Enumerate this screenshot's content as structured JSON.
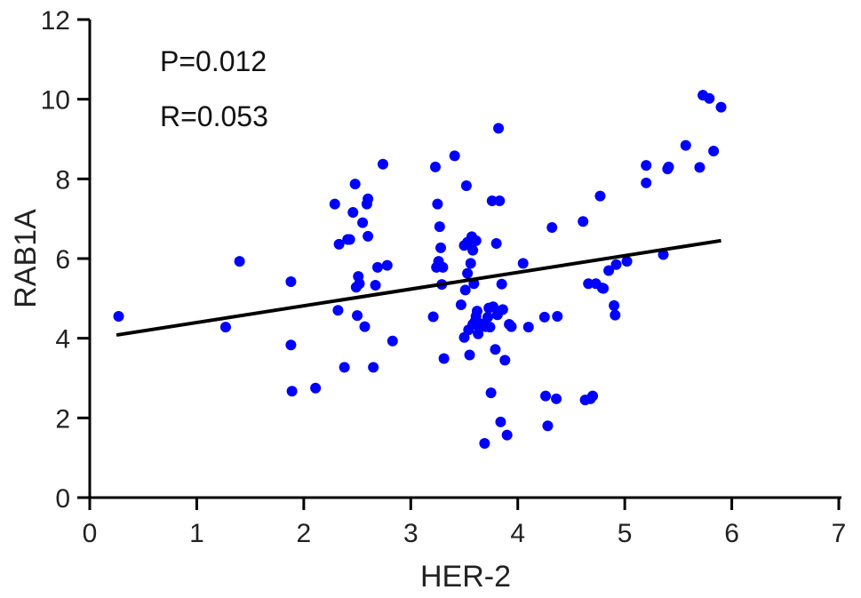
{
  "chart_data": {
    "type": "scatter",
    "xlabel": "HER-2",
    "ylabel": "RAB1A",
    "xlim": [
      0,
      7
    ],
    "ylim": [
      0,
      12
    ],
    "xticks": [
      0,
      1,
      2,
      3,
      4,
      5,
      6,
      7
    ],
    "yticks": [
      0,
      2,
      4,
      6,
      8,
      10,
      12
    ],
    "grid": false,
    "marker_color": "#0000ff",
    "line_color": "#000000",
    "annotations": [
      "P=0.012",
      "R=0.053"
    ],
    "trendline": {
      "x": [
        0.25,
        5.9
      ],
      "y": [
        4.08,
        6.45
      ]
    },
    "series": [
      {
        "x": [
          0.27,
          1.27,
          1.4,
          1.88,
          1.88,
          1.89,
          2.11,
          2.29,
          2.32,
          2.33,
          2.38,
          2.41,
          2.43,
          2.46,
          2.48,
          2.49,
          2.5,
          2.51,
          2.52,
          2.55,
          2.57,
          2.59,
          2.6,
          2.6,
          2.65,
          2.67,
          2.69,
          2.74,
          2.78,
          2.83,
          3.21,
          3.23,
          3.24,
          3.25,
          3.26,
          3.27,
          3.28,
          3.29,
          3.3,
          3.31,
          3.41,
          3.47,
          3.5,
          3.5,
          3.51,
          3.52,
          3.53,
          3.53,
          3.54,
          3.55,
          3.56,
          3.57,
          3.58,
          3.58,
          3.59,
          3.6,
          3.61,
          3.61,
          3.62,
          3.63,
          3.64,
          3.66,
          3.69,
          3.7,
          3.72,
          3.73,
          3.74,
          3.75,
          3.76,
          3.77,
          3.79,
          3.8,
          3.81,
          3.82,
          3.83,
          3.84,
          3.85,
          3.86,
          3.88,
          3.9,
          3.92,
          3.94,
          4.05,
          4.1,
          4.25,
          4.26,
          4.28,
          4.32,
          4.36,
          4.37,
          4.61,
          4.63,
          4.66,
          4.68,
          4.7,
          4.73,
          4.77,
          4.79,
          4.8,
          4.85,
          4.9,
          4.91,
          4.92,
          5.02,
          5.2,
          5.2,
          5.36,
          5.4,
          5.41,
          5.57,
          5.7,
          5.73,
          5.79,
          5.83,
          5.9
        ],
        "y": [
          4.55,
          4.28,
          5.93,
          5.42,
          3.83,
          2.67,
          2.75,
          7.37,
          4.7,
          6.36,
          3.27,
          6.48,
          6.48,
          7.16,
          7.87,
          5.28,
          4.57,
          5.55,
          5.37,
          6.9,
          4.29,
          7.37,
          7.5,
          6.56,
          3.27,
          5.33,
          5.78,
          8.37,
          5.83,
          3.93,
          4.54,
          8.3,
          5.78,
          7.37,
          5.93,
          6.8,
          6.27,
          5.35,
          5.78,
          3.49,
          8.58,
          4.84,
          4.02,
          6.33,
          5.21,
          7.83,
          5.63,
          6.41,
          4.21,
          3.58,
          5.88,
          6.55,
          6.21,
          4.35,
          5.37,
          4.42,
          4.55,
          6.45,
          4.68,
          4.11,
          4.28,
          4.36,
          1.36,
          4.29,
          4.53,
          4.76,
          4.28,
          2.63,
          7.45,
          4.79,
          3.72,
          6.38,
          4.59,
          9.27,
          7.45,
          1.9,
          5.36,
          4.72,
          3.45,
          1.57,
          4.35,
          4.29,
          5.88,
          4.28,
          4.53,
          2.55,
          1.8,
          6.78,
          2.48,
          4.55,
          6.93,
          2.45,
          5.37,
          2.48,
          2.55,
          5.37,
          7.57,
          5.26,
          5.25,
          5.7,
          4.82,
          4.58,
          5.85,
          5.93,
          8.34,
          7.9,
          6.1,
          8.25,
          8.3,
          8.84,
          8.29,
          10.1,
          10.02,
          8.7,
          9.8
        ]
      }
    ]
  }
}
